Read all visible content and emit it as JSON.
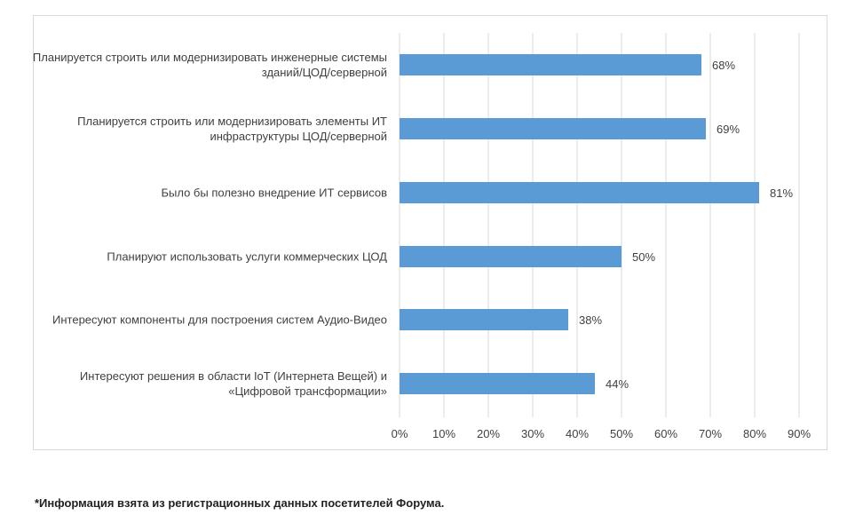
{
  "chart_data": {
    "type": "bar",
    "orientation": "horizontal",
    "categories": [
      "Планируется строить или модернизировать инженерные системы зданий/ЦОД/серверной",
      "Планируется строить или модернизировать элементы ИТ инфраструктуры ЦОД/серверной",
      "Было бы полезно внедрение ИТ сервисов",
      "Планируют использовать услуги коммерческих ЦОД",
      "Интересуют компоненты для построения систем Аудио-Видео",
      "Интересуют решения в области IoT (Интернета Вещей) и «Цифровой трансформации»"
    ],
    "values": [
      68,
      69,
      81,
      50,
      38,
      44
    ],
    "data_labels": [
      "68%",
      "69%",
      "81%",
      "50%",
      "38%",
      "44%"
    ],
    "xlim": [
      0,
      90
    ],
    "xticks": [
      0,
      10,
      20,
      30,
      40,
      50,
      60,
      70,
      80,
      90
    ],
    "xtick_labels": [
      "0%",
      "10%",
      "20%",
      "30%",
      "40%",
      "50%",
      "60%",
      "70%",
      "80%",
      "90%"
    ],
    "grid": true,
    "bar_color": "#5b9bd5",
    "grid_color": "#d9d9d9"
  },
  "footnote": "*Информация взята из регистрационных данных посетителей Форума."
}
